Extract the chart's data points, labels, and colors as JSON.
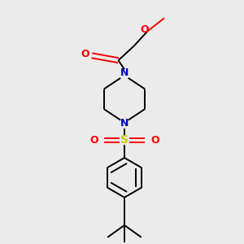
{
  "bg_color": "#ebebeb",
  "bond_color": "#000000",
  "N_color": "#0000cc",
  "O_color": "#ff0000",
  "S_color": "#cccc00",
  "font_size": 8,
  "line_width": 1.4,
  "figsize": [
    3.0,
    3.0
  ],
  "dpi": 100,
  "xlim": [
    0,
    10
  ],
  "ylim": [
    0,
    10
  ]
}
